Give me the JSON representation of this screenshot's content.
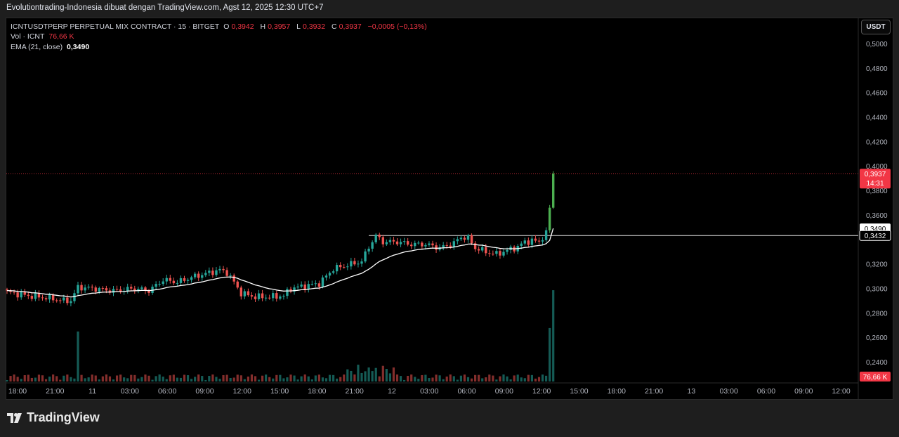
{
  "header": {
    "text": "Evolutiontrading-Indonesia dibuat dengan TradingView.com, Agst 12, 2025 12:30 UTC+7"
  },
  "legend": {
    "symbol": "ICNTUSDTPERP PERPETUAL MIX CONTRACT · 15 · BITGET",
    "o_label": "O",
    "o_val": "0,3942",
    "h_label": "H",
    "h_val": "0,3957",
    "l_label": "L",
    "l_val": "0,3932",
    "c_label": "C",
    "c_val": "0,3937",
    "change": "−0,0005 (−0,13%)",
    "vol_label": "Vol · ICNT",
    "vol_val": "76,66 K",
    "ema_label": "EMA (21, close)",
    "ema_val": "0,3490"
  },
  "currency_button": "USDT",
  "footer": {
    "brand": "TradingView"
  },
  "colors": {
    "up": "#26a69a",
    "up_bright": "#4caf50",
    "down": "#ef5350",
    "ema": "#ffffff",
    "price_label_bg": "#f23645"
  },
  "chart_data": {
    "type": "candlestick",
    "x_ticks": [
      "18:00",
      "21:00",
      "11",
      "03:00",
      "06:00",
      "09:00",
      "12:00",
      "15:00",
      "18:00",
      "21:00",
      "12",
      "03:00",
      "06:00",
      "09:00",
      "12:00",
      "15:00",
      "18:00",
      "21:00",
      "13",
      "03:00",
      "06:00",
      "09:00",
      "12:00"
    ],
    "y_ticks": [
      "0,5000",
      "0,4800",
      "0,4600",
      "0,4400",
      "0,4200",
      "0,4000",
      "0,3800",
      "0,3600",
      "0,3200",
      "0,3000",
      "0,2800",
      "0,2600",
      "0,2400"
    ],
    "ylim": [
      0.23,
      0.51
    ],
    "last_price": {
      "value": 0.3937,
      "label": "0,3937",
      "countdown": "14:31"
    },
    "ema": {
      "value": 0.349,
      "label": "0,3490"
    },
    "resistance": {
      "value": 0.3432,
      "label": "0,3432"
    },
    "volume_label": "76,66 K",
    "close_path_anchors": [
      [
        0,
        0.297
      ],
      [
        6,
        0.294
      ],
      [
        12,
        0.292
      ],
      [
        16,
        0.29
      ],
      [
        18,
        0.29
      ],
      [
        20,
        0.301
      ],
      [
        24,
        0.3
      ],
      [
        30,
        0.298
      ],
      [
        36,
        0.3
      ],
      [
        40,
        0.298
      ],
      [
        44,
        0.307
      ],
      [
        48,
        0.305
      ],
      [
        52,
        0.309
      ],
      [
        56,
        0.312
      ],
      [
        60,
        0.315
      ],
      [
        62,
        0.313
      ],
      [
        64,
        0.305
      ],
      [
        66,
        0.296
      ],
      [
        70,
        0.293
      ],
      [
        74,
        0.293
      ],
      [
        78,
        0.294
      ],
      [
        80,
        0.3
      ],
      [
        84,
        0.302
      ],
      [
        88,
        0.304
      ],
      [
        92,
        0.316
      ],
      [
        96,
        0.319
      ],
      [
        100,
        0.322
      ],
      [
        102,
        0.334
      ],
      [
        104,
        0.343
      ],
      [
        106,
        0.338
      ],
      [
        110,
        0.338
      ],
      [
        114,
        0.336
      ],
      [
        118,
        0.336
      ],
      [
        122,
        0.333
      ],
      [
        126,
        0.337
      ],
      [
        128,
        0.342
      ],
      [
        130,
        0.341
      ],
      [
        132,
        0.333
      ],
      [
        136,
        0.329
      ],
      [
        138,
        0.328
      ],
      [
        140,
        0.33
      ],
      [
        144,
        0.334
      ],
      [
        146,
        0.338
      ],
      [
        148,
        0.339
      ],
      [
        150,
        0.338
      ],
      [
        151,
        0.342
      ],
      [
        152,
        0.345
      ],
      [
        153,
        0.366
      ],
      [
        154,
        0.3937
      ]
    ],
    "volume_spikes": [
      [
        20,
        0.2648
      ],
      [
        153,
        0.2676
      ],
      [
        154,
        0.2985
      ]
    ]
  }
}
